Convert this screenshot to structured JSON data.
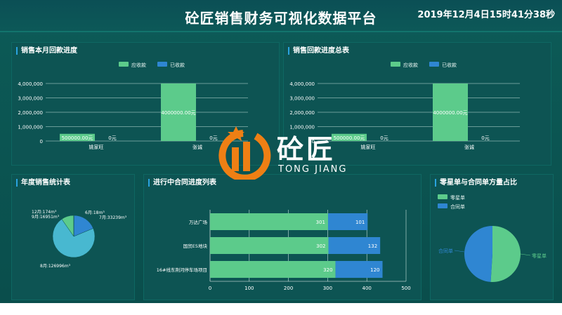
{
  "header": {
    "title": "砼匠销售财务可视化数据平台",
    "datetime": "2019年12月4日15时41分38秒"
  },
  "logo": {
    "cn": "砼匠",
    "en": "TONG JIANG"
  },
  "colors": {
    "receivable": "#5ccb8b",
    "received": "#2f86d2",
    "accent": "#2aa3e0"
  },
  "panels": {
    "monthly": {
      "title": "销售本月回款进度",
      "legend": [
        "应收款",
        "已收款"
      ],
      "chart_data": {
        "type": "bar",
        "categories": [
          "姚家旺",
          "张诚"
        ],
        "series": [
          {
            "name": "应收款",
            "values": [
              500000,
              4000000
            ],
            "labels": [
              "500000.00元",
              "4000000.00元"
            ]
          },
          {
            "name": "已收款",
            "values": [
              0,
              0
            ],
            "labels": [
              "0元",
              "0元"
            ]
          }
        ],
        "ylim": [
          0,
          4000000
        ],
        "yticks": [
          "0",
          "1,000,000",
          "2,000,000",
          "3,000,000",
          "4,000,000"
        ]
      }
    },
    "total": {
      "title": "销售回款进度总表",
      "legend": [
        "应收款",
        "已收款"
      ],
      "chart_data": {
        "type": "bar",
        "categories": [
          "姚家旺",
          "张诚"
        ],
        "series": [
          {
            "name": "应收款",
            "values": [
              500000,
              4000000
            ],
            "labels": [
              "500000.00元",
              "4000000.00元"
            ]
          },
          {
            "name": "已收款",
            "values": [
              0,
              0
            ],
            "labels": [
              "0元",
              "0元"
            ]
          }
        ],
        "ylim": [
          0,
          4000000
        ],
        "yticks": [
          "0",
          "1,000,000",
          "2,000,000",
          "3,000,000",
          "4,000,000"
        ]
      }
    },
    "annual": {
      "title": "年度销售统计表",
      "chart_data": {
        "type": "pie",
        "slices": [
          {
            "label": "6月:18m³",
            "value": 18,
            "color": "#2f86d2"
          },
          {
            "label": "7月:33239m³",
            "value": 33239,
            "color": "#2f86d2"
          },
          {
            "label": "8月:126996m³",
            "value": 126996,
            "color": "#48b8d0"
          },
          {
            "label": "9月:16951m³",
            "value": 16951,
            "color": "#5ccb8b"
          },
          {
            "label": "12月:174m³",
            "value": 174,
            "color": "#3aa872"
          }
        ]
      }
    },
    "progress": {
      "title": "进行中合同进度列表",
      "chart_data": {
        "type": "bar",
        "orientation": "horizontal",
        "stacked": true,
        "categories": [
          "万达广场",
          "国贸E5地块",
          "16#线东荆河停车场项目"
        ],
        "series": [
          {
            "values": [
              301,
              302,
              320
            ],
            "color": "#5ccb8b"
          },
          {
            "values": [
              101,
              132,
              120
            ],
            "color": "#2f86d2"
          }
        ],
        "xlim": [
          0,
          500
        ],
        "xticks": [
          "0",
          "100",
          "200",
          "300",
          "400",
          "500"
        ]
      }
    },
    "ratio": {
      "title": "零星单与合同单方量占比",
      "legend": [
        "零星单",
        "合同单"
      ],
      "chart_data": {
        "type": "pie",
        "slices": [
          {
            "label": "零星单",
            "value": 51,
            "color": "#5ccb8b"
          },
          {
            "label": "合同单",
            "value": 49,
            "color": "#2f86d2"
          }
        ]
      }
    }
  }
}
